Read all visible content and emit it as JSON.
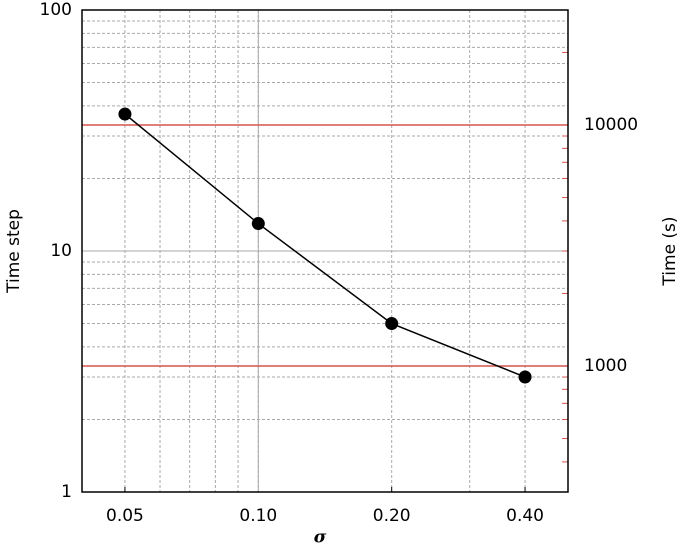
{
  "chart_data": {
    "type": "line",
    "xlabel": "σ",
    "ylabel": "Time step",
    "y2label": "Time (s)",
    "x": [
      0.05,
      0.1,
      0.2,
      0.4
    ],
    "series": [
      {
        "color": "#000000",
        "values": [
          37,
          13,
          5,
          3
        ]
      }
    ],
    "xscale": "log",
    "yscale": "log",
    "y2scale": "log",
    "xlim": [
      0.04,
      0.5
    ],
    "xticks": [
      {
        "value": 0.05,
        "label": "0.05"
      },
      {
        "value": 0.1,
        "label": "0.10"
      },
      {
        "value": 0.2,
        "label": "0.20"
      },
      {
        "value": 0.4,
        "label": "0.40"
      }
    ],
    "ylim": [
      1,
      100
    ],
    "yticks": [
      1,
      10,
      100
    ],
    "y2lim": [
      300,
      30000
    ],
    "y2ticks": [
      1000,
      10000
    ],
    "y2color": "#d9534f",
    "grid": true
  }
}
